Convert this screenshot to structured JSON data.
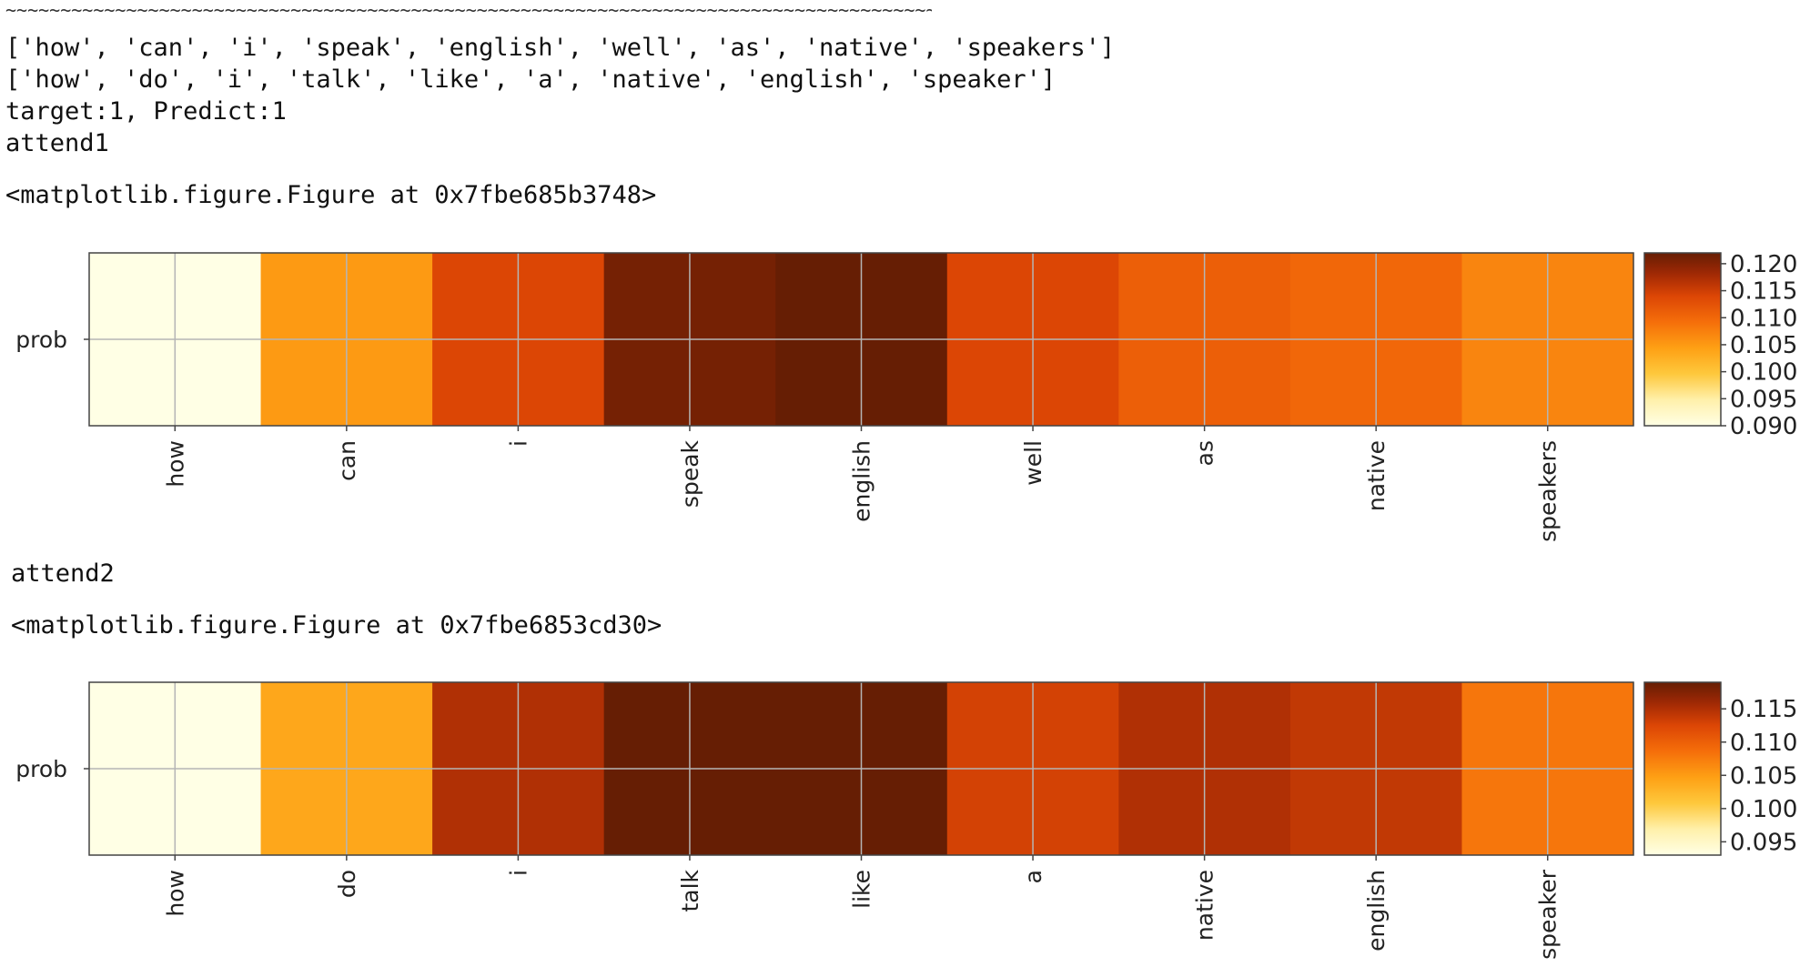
{
  "output": {
    "rule": "~~~~~~~~~~~~~~~~~~~~~~~~~~~~~~~~~~~~~~~~~~~~~~~~~~~~~~~~~~~~~~~~~~~~~~~~~~~~~~~~~~~~~~~~~~~~~~~~~~~~~~~~~~~~~~~~~~~~",
    "tokens_a": "['how', 'can', 'i', 'speak', 'english', 'well', 'as', 'native', 'speakers']",
    "tokens_b": "['how', 'do', 'i', 'talk', 'like', 'a', 'native', 'english', 'speaker']",
    "target_predict": "target:1, Predict:1",
    "attend1_label": "attend1",
    "figure1_repr": "<matplotlib.figure.Figure at 0x7fbe685b3748>",
    "attend2_label": "attend2",
    "figure2_repr": "<matplotlib.figure.Figure at 0x7fbe6853cd30>"
  },
  "chart_data": [
    {
      "type": "heatmap",
      "title": "",
      "ylabel_tick": "prob",
      "categories": [
        "how",
        "can",
        "i",
        "speak",
        "english",
        "well",
        "as",
        "native",
        "speakers"
      ],
      "values": [
        0.09,
        0.105,
        0.114,
        0.121,
        0.122,
        0.114,
        0.111,
        0.11,
        0.107
      ],
      "colormap": "YlOrBr",
      "colorbar_range": [
        0.09,
        0.122
      ],
      "colorbar_ticks": [
        "0.090",
        "0.095",
        "0.100",
        "0.105",
        "0.110",
        "0.115",
        "0.120"
      ],
      "colorbar_tick_values": [
        0.09,
        0.095,
        0.1,
        0.105,
        0.11,
        0.115,
        0.12
      ],
      "grid": true
    },
    {
      "type": "heatmap",
      "title": "",
      "ylabel_tick": "prob",
      "categories": [
        "how",
        "do",
        "i",
        "talk",
        "like",
        "a",
        "native",
        "english",
        "speaker"
      ],
      "values": [
        0.093,
        0.104,
        0.115,
        0.119,
        0.119,
        0.113,
        0.115,
        0.114,
        0.108
      ],
      "colormap": "YlOrBr",
      "colorbar_range": [
        0.093,
        0.119
      ],
      "colorbar_ticks": [
        "0.095",
        "0.100",
        "0.105",
        "0.110",
        "0.115"
      ],
      "colorbar_tick_values": [
        0.095,
        0.1,
        0.105,
        0.11,
        0.115
      ],
      "grid": true
    }
  ]
}
